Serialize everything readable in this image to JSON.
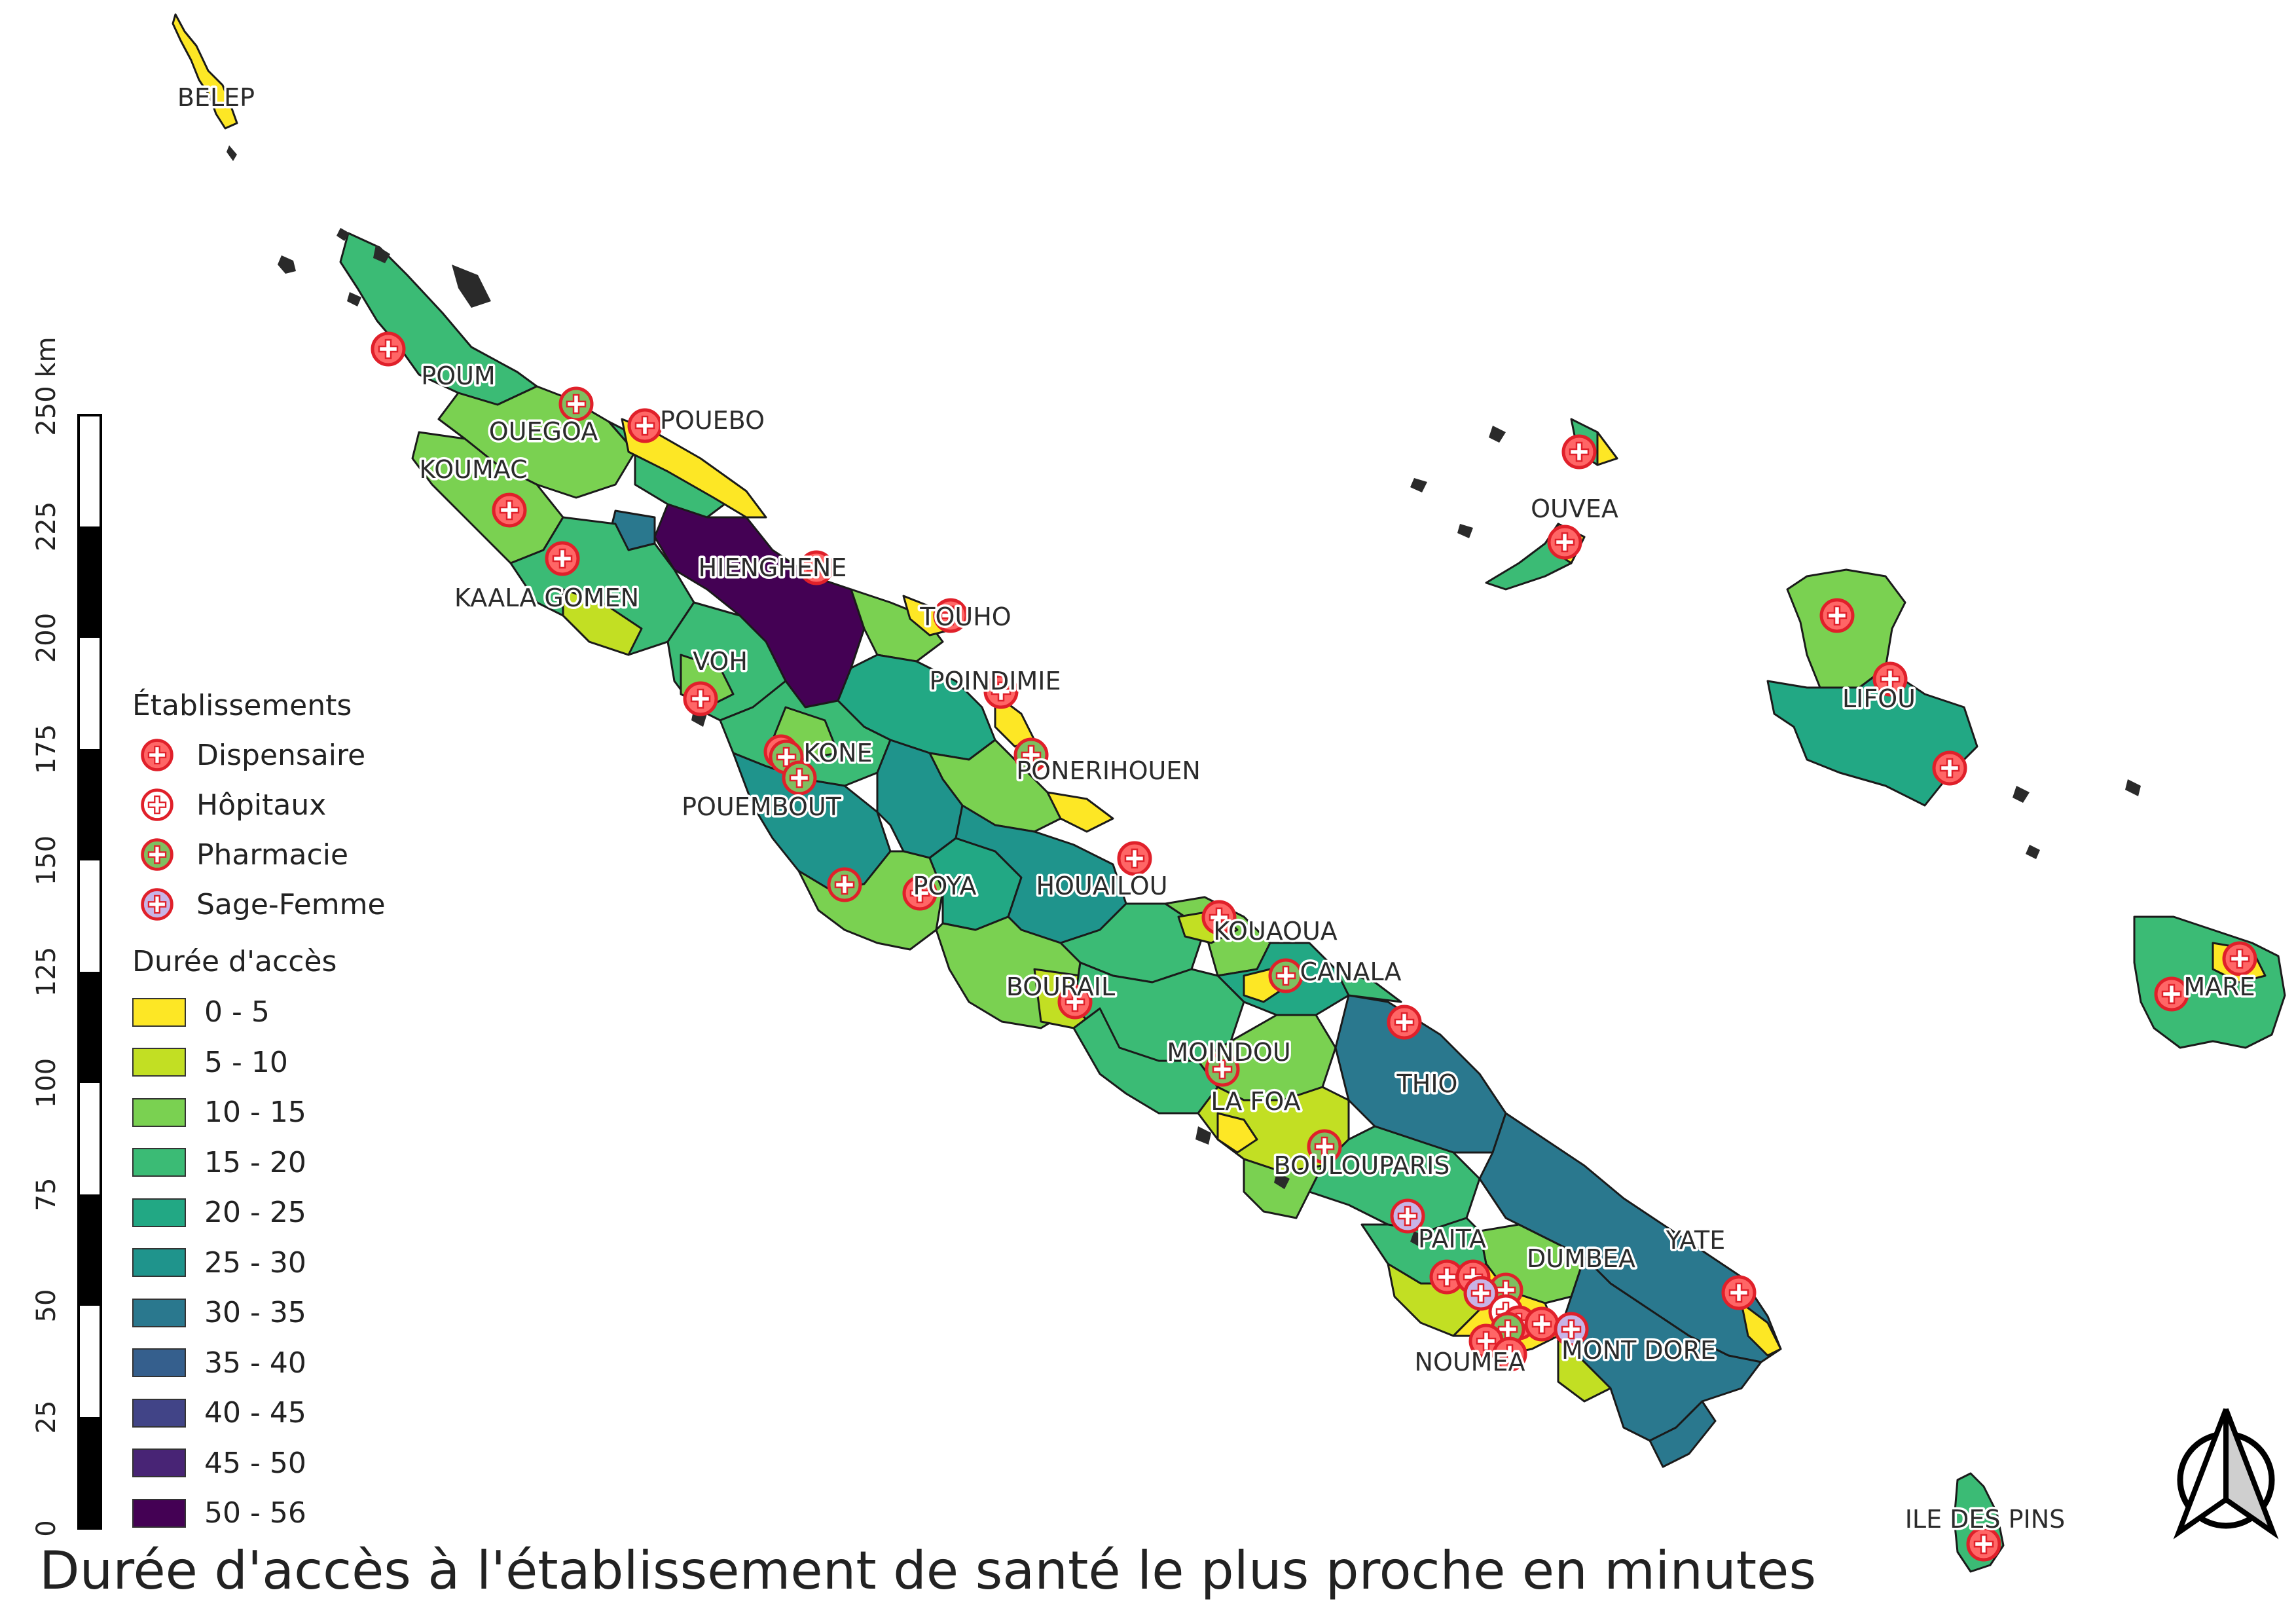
{
  "title": "Durée d'accès à l'établissement de santé le plus proche en minutes",
  "legend": {
    "facilities_title": "Établissements",
    "facilities": [
      {
        "label": "Dispensaire",
        "fill": "#ff6666",
        "icon": "red-cross-icon"
      },
      {
        "label": "Hôpitaux",
        "fill": "#ffffff",
        "icon": "red-cross-icon"
      },
      {
        "label": "Pharmacie",
        "fill": "#7fbf60",
        "icon": "green-cross-icon"
      },
      {
        "label": "Sage-Femme",
        "fill": "#c8b4e6",
        "icon": "purple-cross-icon"
      }
    ],
    "duration_title": "Durée d'accès",
    "classes": [
      {
        "label": "0 - 5",
        "color": "#fde725"
      },
      {
        "label": "5 - 10",
        "color": "#c2df23"
      },
      {
        "label": "10 - 15",
        "color": "#7ad151"
      },
      {
        "label": "15 - 20",
        "color": "#3bbb75"
      },
      {
        "label": "20 - 25",
        "color": "#22a884"
      },
      {
        "label": "25 - 30",
        "color": "#1f948c"
      },
      {
        "label": "30 - 35",
        "color": "#2a788e"
      },
      {
        "label": "35 - 40",
        "color": "#355f8d"
      },
      {
        "label": "40 - 45",
        "color": "#414487"
      },
      {
        "label": "45 - 50",
        "color": "#482475"
      },
      {
        "label": "50 - 56",
        "color": "#440154"
      }
    ]
  },
  "scale_bar": {
    "unit_label": "250 km",
    "ticks": [
      "0",
      "25",
      "50",
      "75",
      "100",
      "125",
      "150",
      "175",
      "200",
      "225"
    ]
  },
  "towns": [
    "BELEP",
    "POUM",
    "OUEGOA",
    "POUEBO",
    "KOUMAC",
    "HIENGHENE",
    "KAALA GOMEN",
    "TOUHO",
    "VOH",
    "POINDIMIE",
    "KONE",
    "PONERIHOUEN",
    "POUEMBOUT",
    "POYA",
    "HOUAILOU",
    "KOUAOUA",
    "CANALA",
    "BOURAIL",
    "MOINDOU",
    "THIO",
    "LA FOA",
    "BOULOUPARIS",
    "PAITA",
    "DUMBEA",
    "YATE",
    "NOUMEA",
    "MONT DORE",
    "OUVEA",
    "LIFOU",
    "MARE",
    "ILE DES PINS"
  ],
  "north_arrow": {
    "icon": "north-arrow-icon"
  }
}
